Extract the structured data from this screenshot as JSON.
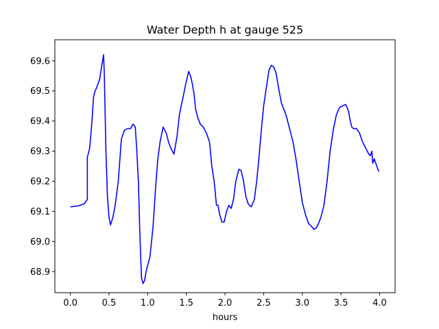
{
  "chart_data": {
    "type": "line",
    "title": "Water Depth h at gauge 525",
    "xlabel": "hours",
    "ylabel": "",
    "xlim": [
      -0.2,
      4.2
    ],
    "ylim": [
      68.83,
      69.67
    ],
    "xticks": [
      "0.0",
      "0.5",
      "1.0",
      "1.5",
      "2.0",
      "2.5",
      "3.0",
      "3.5",
      "4.0"
    ],
    "xtick_values": [
      0.0,
      0.5,
      1.0,
      1.5,
      2.0,
      2.5,
      3.0,
      3.5,
      4.0
    ],
    "yticks": [
      "68.9",
      "69.0",
      "69.1",
      "69.2",
      "69.3",
      "69.4",
      "69.5",
      "69.6"
    ],
    "ytick_values": [
      68.9,
      69.0,
      69.1,
      69.2,
      69.3,
      69.4,
      69.5,
      69.6
    ],
    "grid": false,
    "legend": "none",
    "series": [
      {
        "color": "#0000ff",
        "x": [
          0.0,
          0.1,
          0.18,
          0.22,
          0.22,
          0.25,
          0.28,
          0.3,
          0.32,
          0.34,
          0.38,
          0.41,
          0.43,
          0.44,
          0.46,
          0.48,
          0.5,
          0.52,
          0.55,
          0.58,
          0.62,
          0.66,
          0.7,
          0.74,
          0.78,
          0.81,
          0.84,
          0.86,
          0.88,
          0.9,
          0.92,
          0.94,
          0.96,
          0.98,
          1.0,
          1.03,
          1.07,
          1.1,
          1.13,
          1.16,
          1.2,
          1.24,
          1.27,
          1.3,
          1.34,
          1.38,
          1.41,
          1.45,
          1.49,
          1.53,
          1.56,
          1.58,
          1.6,
          1.62,
          1.65,
          1.68,
          1.72,
          1.76,
          1.8,
          1.83,
          1.86,
          1.89,
          1.91,
          1.93,
          1.96,
          1.99,
          2.02,
          2.05,
          2.08,
          2.11,
          2.14,
          2.18,
          2.21,
          2.24,
          2.27,
          2.3,
          2.34,
          2.38,
          2.41,
          2.44,
          2.47,
          2.5,
          2.54,
          2.57,
          2.6,
          2.63,
          2.66,
          2.68,
          2.7,
          2.73,
          2.76,
          2.79,
          2.84,
          2.88,
          2.92,
          2.96,
          3.0,
          3.04,
          3.08,
          3.12,
          3.15,
          3.18,
          3.21,
          3.24,
          3.28,
          3.32,
          3.36,
          3.4,
          3.44,
          3.48,
          3.52,
          3.56,
          3.58,
          3.6,
          3.62,
          3.64,
          3.66,
          3.7,
          3.74,
          3.78,
          3.82,
          3.86,
          3.88,
          3.9,
          3.91,
          3.92,
          3.93,
          3.95,
          3.97,
          3.99
        ],
        "y": [
          69.115,
          69.118,
          69.125,
          69.14,
          69.28,
          69.31,
          69.4,
          69.48,
          69.5,
          69.51,
          69.54,
          69.59,
          69.62,
          69.55,
          69.3,
          69.15,
          69.08,
          69.055,
          69.08,
          69.12,
          69.2,
          69.34,
          69.37,
          69.375,
          69.375,
          69.39,
          69.38,
          69.3,
          69.2,
          69.02,
          68.88,
          68.86,
          68.87,
          68.9,
          68.92,
          68.95,
          69.05,
          69.17,
          69.27,
          69.33,
          69.38,
          69.36,
          69.33,
          69.31,
          69.29,
          69.35,
          69.42,
          69.47,
          69.52,
          69.565,
          69.545,
          69.52,
          69.49,
          69.44,
          69.41,
          69.39,
          69.38,
          69.36,
          69.33,
          69.25,
          69.2,
          69.12,
          69.12,
          69.09,
          69.065,
          69.065,
          69.1,
          69.12,
          69.11,
          69.14,
          69.2,
          69.24,
          69.235,
          69.2,
          69.15,
          69.125,
          69.115,
          69.14,
          69.2,
          69.28,
          69.37,
          69.45,
          69.52,
          69.57,
          69.585,
          69.58,
          69.56,
          69.53,
          69.5,
          69.46,
          69.44,
          69.42,
          69.37,
          69.33,
          69.27,
          69.2,
          69.13,
          69.09,
          69.06,
          69.05,
          69.04,
          69.045,
          69.06,
          69.08,
          69.12,
          69.2,
          69.3,
          69.37,
          69.42,
          69.445,
          69.45,
          69.455,
          69.445,
          69.43,
          69.4,
          69.38,
          69.375,
          69.375,
          69.36,
          69.33,
          69.31,
          69.29,
          69.285,
          69.3,
          69.26,
          69.265,
          69.275,
          69.26,
          69.245,
          69.232
        ]
      }
    ]
  }
}
